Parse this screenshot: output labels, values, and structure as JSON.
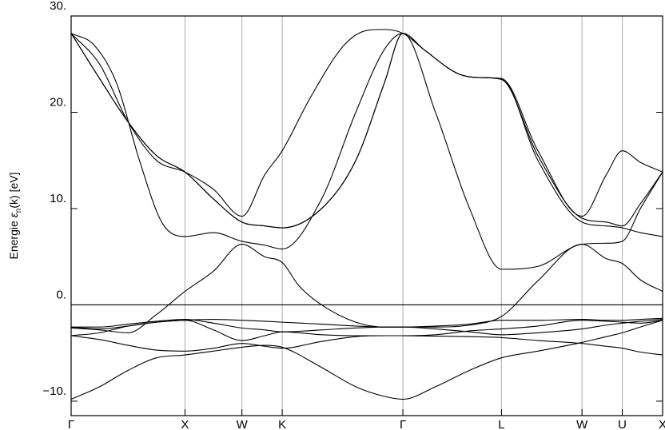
{
  "chart_data": {
    "type": "line",
    "ylabel": "Energie ε_n(k)  [eV]",
    "ylabel_parts": {
      "pre": "Energie ",
      "eps": "ε",
      "sub": "n",
      "post": "(k)  [eV]"
    },
    "ylim": [
      -11.5,
      30.0
    ],
    "y_ticks": [
      -10,
      0,
      10,
      20,
      30
    ],
    "y_tick_labels": [
      "−10.",
      "0.",
      "10.",
      "20.",
      "30."
    ],
    "k_points": [
      {
        "label": "Γ",
        "x": 0.0
      },
      {
        "label": "X",
        "x": 1.0
      },
      {
        "label": "W",
        "x": 1.5
      },
      {
        "label": "K",
        "x": 1.854
      },
      {
        "label": "Γ",
        "x": 2.914
      },
      {
        "label": "L",
        "x": 3.78
      },
      {
        "label": "W",
        "x": 4.487
      },
      {
        "label": "U",
        "x": 4.841
      },
      {
        "label": "X",
        "x": 5.195
      }
    ],
    "xlim": [
      0.0,
      5.195
    ],
    "grid": "vertical lines at high-symmetry points",
    "fermi_level": 0.0,
    "series": [
      {
        "x": [
          0,
          0.25,
          0.5,
          0.75,
          1.0,
          1.25,
          1.5,
          1.7,
          1.854,
          2.2,
          2.5,
          2.75,
          2.914,
          3.2,
          3.5,
          3.78,
          4.1,
          4.487,
          4.7,
          4.841,
          5.0,
          5.195
        ],
        "values": [
          -9.8,
          -8.5,
          -6.8,
          -5.5,
          -5.2,
          -4.8,
          -4.4,
          -4.2,
          -4.4,
          -6.5,
          -8.5,
          -9.5,
          -9.8,
          -8.5,
          -6.8,
          -5.5,
          -4.8,
          -3.9,
          -3.3,
          -2.9,
          -2.3,
          -1.6
        ]
      },
      {
        "x": [
          0,
          0.25,
          0.5,
          0.75,
          1.0,
          1.25,
          1.5,
          1.7,
          1.854,
          2.2,
          2.5,
          2.75,
          2.914,
          3.2,
          3.5,
          3.78,
          4.1,
          4.487,
          4.7,
          4.841,
          5.0,
          5.195
        ],
        "values": [
          -3.2,
          -3.6,
          -4.2,
          -4.7,
          -4.8,
          -4.5,
          -4.0,
          -4.3,
          -4.5,
          -3.8,
          -3.3,
          -3.2,
          -3.2,
          -3.25,
          -3.3,
          -3.4,
          -3.7,
          -4.0,
          -4.3,
          -4.5,
          -4.9,
          -5.2
        ]
      },
      {
        "x": [
          0,
          0.25,
          0.5,
          0.75,
          1.0,
          1.25,
          1.5,
          1.7,
          1.854,
          2.2,
          2.5,
          2.75,
          2.914,
          3.2,
          3.5,
          3.78,
          4.1,
          4.487,
          4.7,
          4.841,
          5.0,
          5.195
        ],
        "values": [
          -3.2,
          -2.9,
          -2.2,
          -1.8,
          -1.6,
          -2.6,
          -3.7,
          -3.2,
          -2.8,
          -3.1,
          -3.2,
          -3.2,
          -3.2,
          -3.1,
          -2.7,
          -2.5,
          -2.2,
          -1.6,
          -1.7,
          -1.8,
          -1.9,
          -1.6
        ]
      },
      {
        "x": [
          0,
          0.25,
          0.5,
          0.75,
          1.0,
          1.25,
          1.5,
          1.7,
          1.854,
          2.2,
          2.5,
          2.75,
          2.914,
          3.2,
          3.5,
          3.78,
          4.1,
          4.487,
          4.7,
          4.841,
          5.0,
          5.195
        ],
        "values": [
          -2.3,
          -2.3,
          -2.0,
          -1.7,
          -1.5,
          -1.9,
          -2.4,
          -2.6,
          -2.8,
          -2.6,
          -2.4,
          -2.3,
          -2.3,
          -2.5,
          -2.8,
          -3.1,
          -2.9,
          -2.5,
          -2.1,
          -1.9,
          -1.7,
          -1.5
        ]
      },
      {
        "x": [
          0,
          0.25,
          0.5,
          0.75,
          1.0,
          1.25,
          1.5,
          1.7,
          1.854,
          2.2,
          2.5,
          2.75,
          2.914,
          3.2,
          3.5,
          3.78,
          4.1,
          4.487,
          4.7,
          4.841,
          5.0,
          5.195
        ],
        "values": [
          -2.3,
          -2.5,
          -2.2,
          -1.8,
          -1.6,
          -1.5,
          -1.6,
          -1.7,
          -1.8,
          -2.0,
          -2.2,
          -2.3,
          -2.3,
          -2.2,
          -2.0,
          -1.6,
          -1.6,
          -1.5,
          -1.6,
          -1.6,
          -1.5,
          -1.4
        ]
      },
      {
        "x": [
          0,
          0.25,
          0.5,
          0.75,
          1.0,
          1.25,
          1.5,
          1.7,
          1.854,
          2.0,
          2.2,
          2.5,
          2.75,
          2.914,
          3.2,
          3.5,
          3.78,
          4.1,
          4.487,
          4.7,
          4.841,
          5.0,
          5.195
        ],
        "values": [
          -2.4,
          -2.6,
          -2.9,
          -1.0,
          1.4,
          3.5,
          6.3,
          5.0,
          4.4,
          2.0,
          0.0,
          -1.8,
          -2.3,
          -2.3,
          -2.3,
          -2.1,
          -1.2,
          2.5,
          6.3,
          4.8,
          4.3,
          2.6,
          1.4
        ]
      },
      {
        "x": [
          0,
          0.25,
          0.5,
          0.75,
          1.0,
          1.25,
          1.5,
          1.7,
          1.854,
          2.2,
          2.5,
          2.75,
          2.914,
          3.1,
          3.4,
          3.6,
          3.78,
          4.1,
          4.487,
          4.7,
          4.841,
          5.0,
          5.195
        ],
        "values": [
          28.2,
          23.5,
          19.0,
          15.5,
          13.8,
          11.0,
          8.6,
          8.2,
          8.0,
          10.0,
          15.0,
          23.0,
          28.2,
          26.5,
          24.0,
          23.6,
          23.5,
          15.0,
          8.6,
          8.2,
          8.0,
          7.5,
          7.1
        ]
      },
      {
        "x": [
          0,
          0.25,
          0.5,
          0.75,
          1.0,
          1.25,
          1.5,
          1.7,
          1.854,
          2.2,
          2.5,
          2.75,
          2.914,
          3.1,
          3.4,
          3.6,
          3.78,
          4.1,
          4.487,
          4.7,
          4.841,
          5.0,
          5.195
        ],
        "values": [
          28.2,
          23.5,
          19.0,
          15.5,
          13.8,
          11.0,
          8.6,
          8.2,
          8.0,
          10.0,
          15.0,
          23.0,
          28.2,
          26.5,
          24.0,
          23.6,
          23.4,
          15.5,
          9.0,
          8.6,
          8.2,
          10.5,
          13.8
        ]
      },
      {
        "x": [
          0,
          0.2,
          0.4,
          0.6,
          0.8,
          1.0,
          1.25,
          1.5,
          1.7,
          1.854,
          2.2,
          2.5,
          2.75,
          2.914,
          3.2,
          3.5,
          3.78,
          4.1,
          4.487,
          4.7,
          4.841,
          5.0,
          5.195
        ],
        "values": [
          28.2,
          27.0,
          23.0,
          15.0,
          8.5,
          7.1,
          7.5,
          6.6,
          6.2,
          5.8,
          11.0,
          20.0,
          26.5,
          28.2,
          20.0,
          10.0,
          3.7,
          4.0,
          6.3,
          6.4,
          6.6,
          10.0,
          13.8
        ]
      },
      {
        "x": [
          0,
          0.25,
          0.5,
          0.75,
          1.0,
          1.25,
          1.5,
          1.7,
          1.854,
          2.1,
          2.4,
          2.6,
          2.75,
          2.914,
          3.1,
          3.4,
          3.6,
          3.78,
          4.1,
          4.487,
          4.7,
          4.841,
          5.0,
          5.195
        ],
        "values": [
          28.2,
          25.0,
          19.0,
          15.0,
          13.8,
          12.0,
          9.2,
          13.5,
          16.0,
          21.5,
          27.0,
          28.5,
          28.6,
          28.2,
          26.5,
          24.0,
          23.6,
          23.5,
          16.0,
          9.2,
          13.5,
          16.0,
          14.8,
          13.8
        ]
      }
    ]
  }
}
